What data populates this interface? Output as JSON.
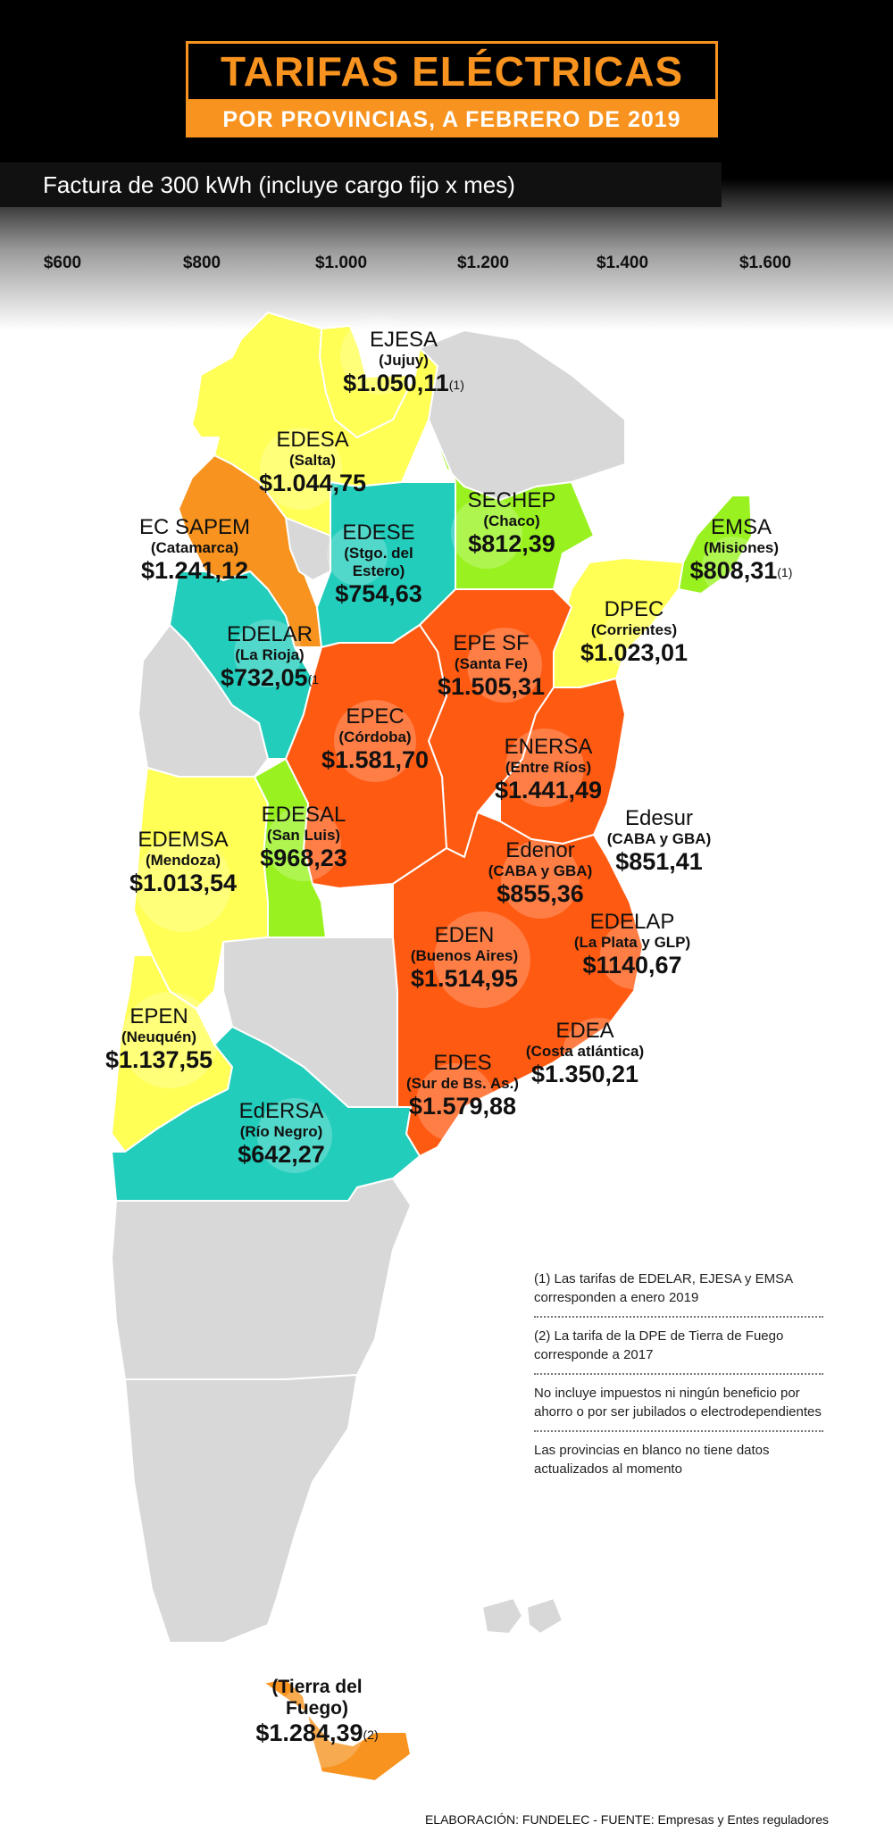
{
  "title": "TARIFAS ELÉCTRICAS",
  "subtitle": "POR PROVINCIAS, A FEBRERO DE 2019",
  "header": "Factura de 300 kWh (incluye cargo fijo x mes)",
  "scale": [
    "$600",
    "$800",
    "$1.000",
    "$1.200",
    "$1.400",
    "$1.600"
  ],
  "colors": {
    "teal": "#22cdbb",
    "lime": "#99f21f",
    "yellow": "#ffff55",
    "orange": "#f7931e",
    "red": "#ff5a12",
    "gray": "#d8d8d8"
  },
  "labels": [
    {
      "company": "EJESA",
      "province": "(Jujuy)",
      "value": "$1.050,11",
      "note": "(1)"
    },
    {
      "company": "EDESA",
      "province": "(Salta)",
      "value": "$1.044,75",
      "note": ""
    },
    {
      "company": "EC SAPEM",
      "province": "(Catamarca)",
      "value": "$1.241,12",
      "note": ""
    },
    {
      "company": "EDESE",
      "province": "(Stgo. del Estero)",
      "value": "$754,63",
      "note": ""
    },
    {
      "company": "SECHEP",
      "province": "(Chaco)",
      "value": "$812,39",
      "note": ""
    },
    {
      "company": "EMSA",
      "province": "(Misiones)",
      "value": "$808,31",
      "note": "(1)"
    },
    {
      "company": "DPEC",
      "province": "(Corrientes)",
      "value": "$1.023,01",
      "note": ""
    },
    {
      "company": "EDELAR",
      "province": "(La Rioja)",
      "value": "$732,05",
      "note": "(1"
    },
    {
      "company": "EPE SF",
      "province": "(Santa Fe)",
      "value": "$1.505,31",
      "note": ""
    },
    {
      "company": "EPEC",
      "province": "(Córdoba)",
      "value": "$1.581,70",
      "note": ""
    },
    {
      "company": "ENERSA",
      "province": "(Entre Ríos)",
      "value": "$1.441,49",
      "note": ""
    },
    {
      "company": "Edesur",
      "province": "(CABA y GBA)",
      "value": "$851,41",
      "note": ""
    },
    {
      "company": "EDEMSA",
      "province": "(Mendoza)",
      "value": "$1.013,54",
      "note": ""
    },
    {
      "company": "EDESAL",
      "province": "(San Luis)",
      "value": "$968,23",
      "note": ""
    },
    {
      "company": "Edenor",
      "province": "(CABA y GBA)",
      "value": "$855,36",
      "note": ""
    },
    {
      "company": "EDELAP",
      "province": "(La Plata y GLP)",
      "value": "$1140,67",
      "note": ""
    },
    {
      "company": "EDEN",
      "province": "(Buenos Aires)",
      "value": "$1.514,95",
      "note": ""
    },
    {
      "company": "EPEN",
      "province": "(Neuquén)",
      "value": "$1.137,55",
      "note": ""
    },
    {
      "company": "EDEA",
      "province": "(Costa atlántica)",
      "value": "$1.350,21",
      "note": ""
    },
    {
      "company": "EDES",
      "province": "(Sur de Bs. As.)",
      "value": "$1.579,88",
      "note": ""
    },
    {
      "company": "EdERSA",
      "province": "(Río Negro)",
      "value": "$642,27",
      "note": ""
    },
    {
      "company": "",
      "province": "(Tierra del Fuego)",
      "value": "$1.284,39",
      "note": "(2)"
    }
  ],
  "notes": [
    "(1) Las tarifas de EDELAR, EJESA y EMSA corresponden a enero 2019",
    "(2) La tarifa de la DPE de Tierra de Fuego corresponde a 2017",
    "No incluye impuestos ni ningún beneficio por ahorro o por ser jubilados o electrodependientes",
    "Las provincias en blanco no tiene datos actualizados al momento"
  ],
  "footer": "ELABORACIÓN: FUNDELEC  -  FUENTE: Empresas y Entes reguladores"
}
